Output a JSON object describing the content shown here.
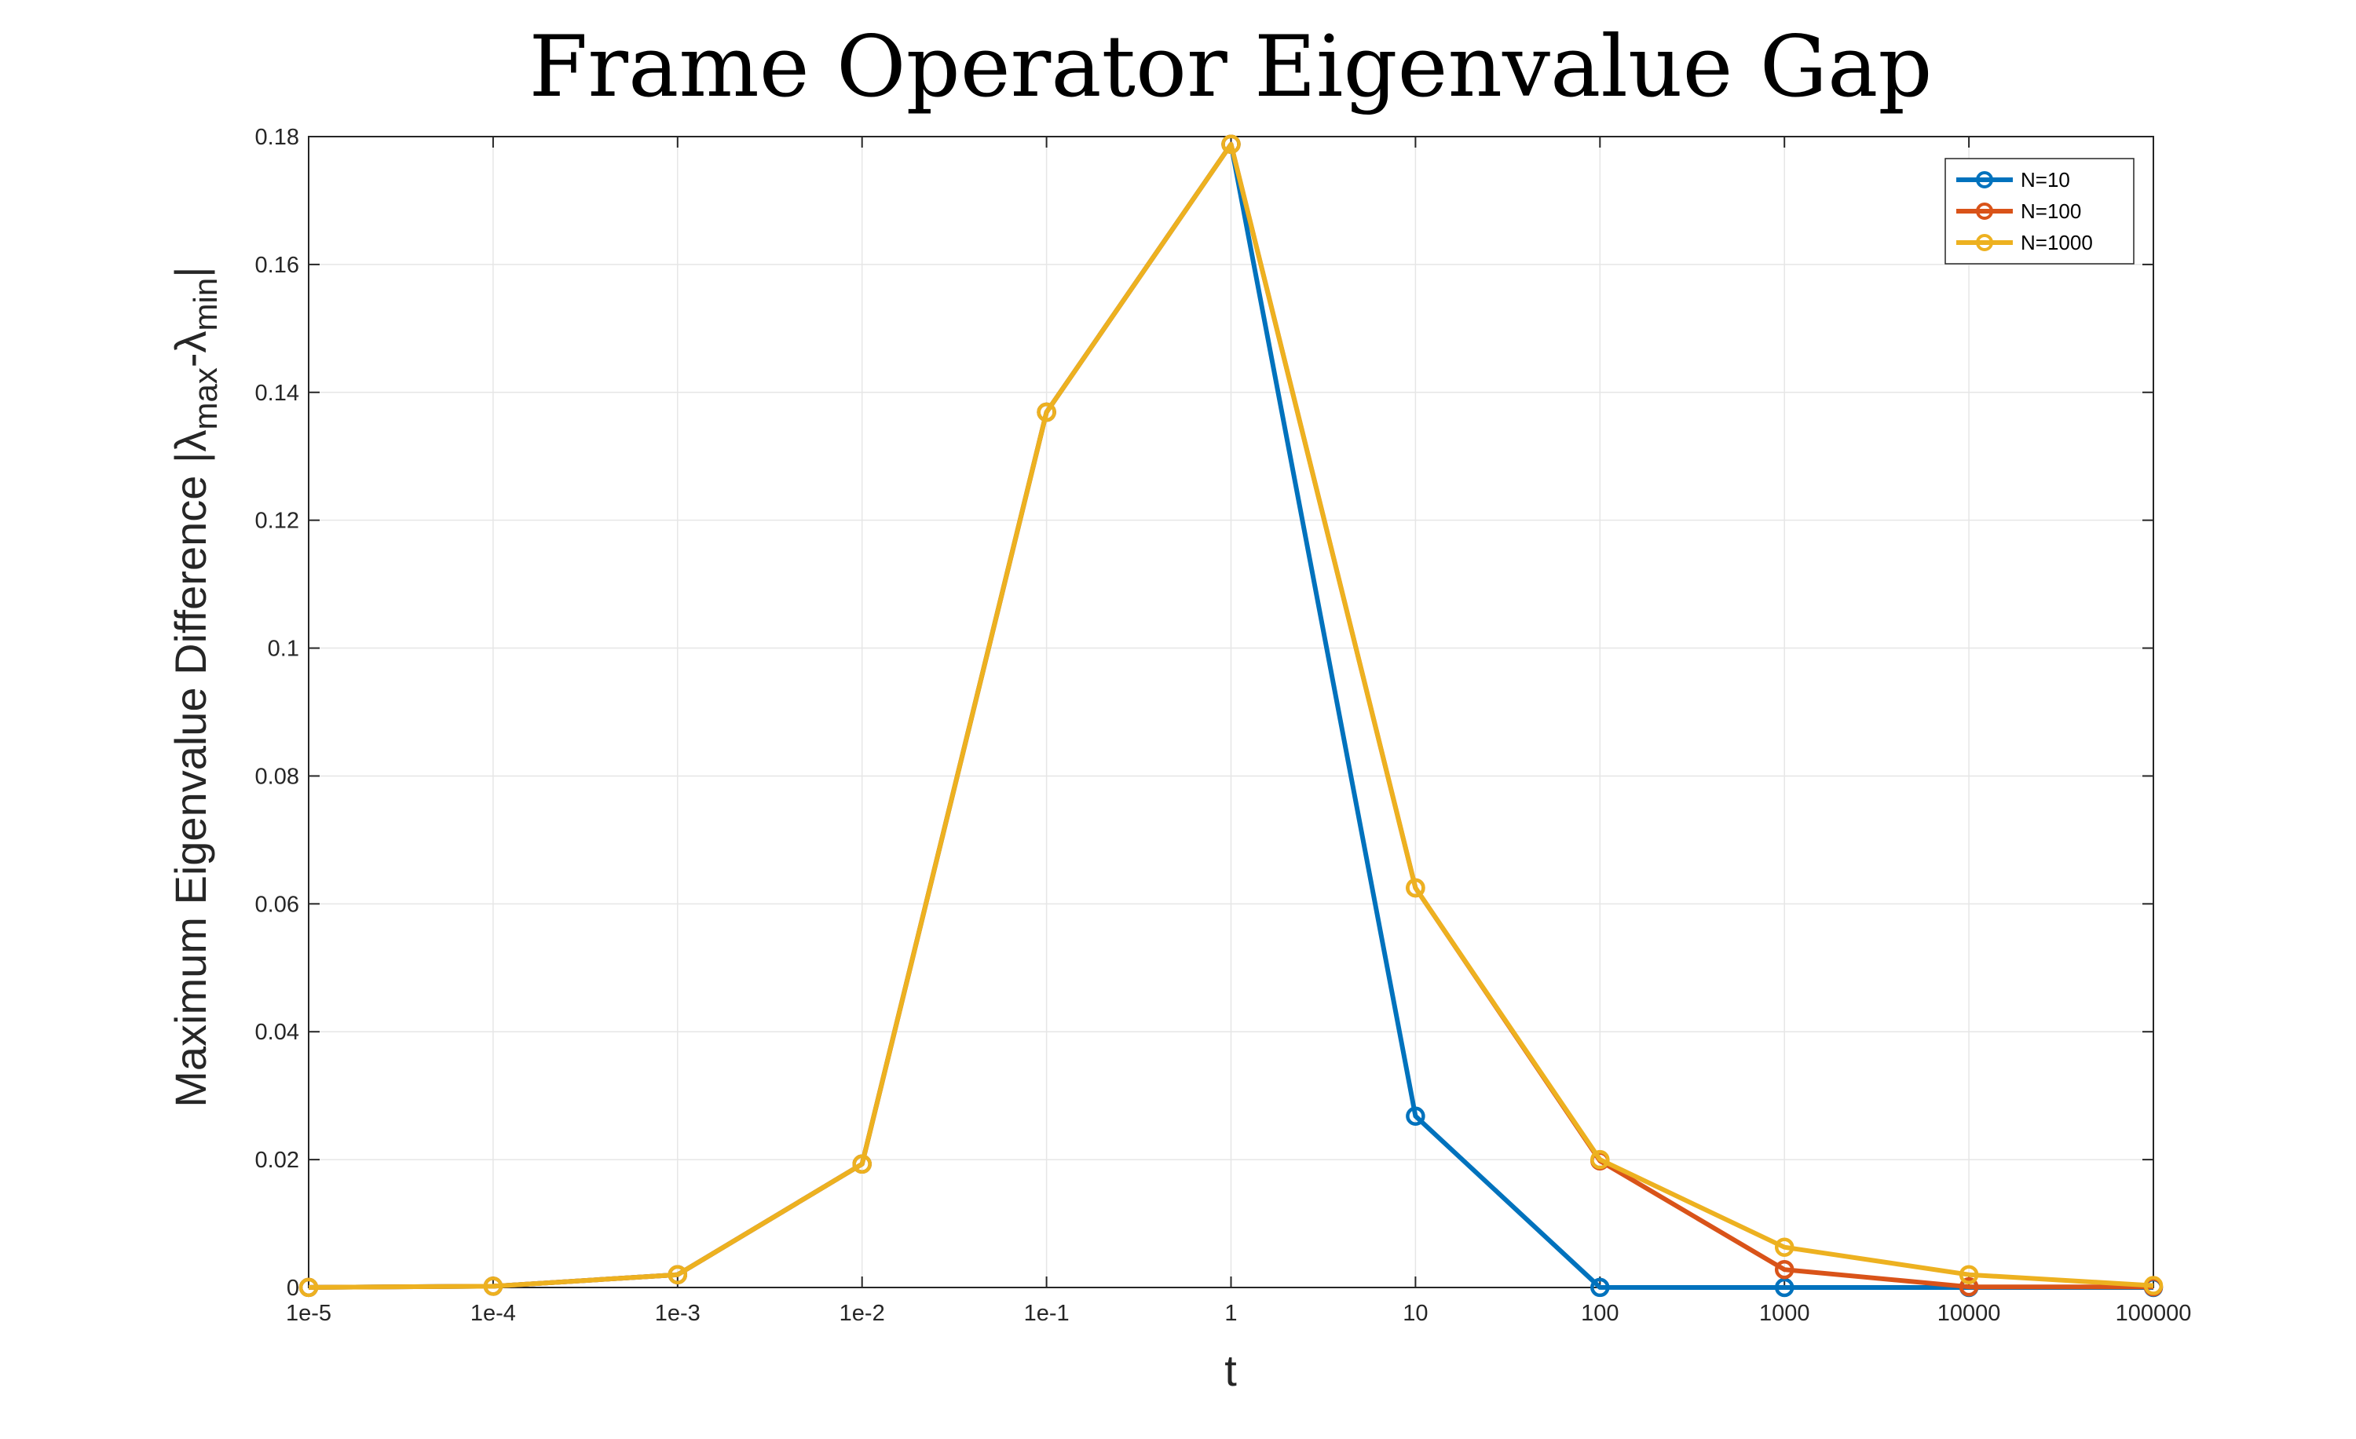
{
  "chart_data": {
    "type": "line",
    "title": "Frame Operator Eigenvalue Gap",
    "xlabel": "t",
    "ylabel": {
      "main": "Maximum Eigenvalue Difference |",
      "lambda": "λ",
      "max_sub": "max",
      "minus": "-",
      "min_sub": "min",
      "close": "|"
    },
    "x_scale": "log",
    "x": [
      1e-05,
      0.0001,
      0.001,
      0.01,
      0.1,
      1,
      10,
      100,
      1000,
      10000,
      100000
    ],
    "x_tick_labels": [
      "1e-5",
      "1e-4",
      "1e-3",
      "1e-2",
      "1e-1",
      "1",
      "10",
      "100",
      "1000",
      "10000",
      "100000"
    ],
    "ylim": [
      0,
      0.18
    ],
    "y_ticks": [
      0,
      0.02,
      0.04,
      0.06,
      0.08,
      0.1,
      0.12,
      0.14,
      0.16,
      0.18
    ],
    "y_tick_labels": [
      "0",
      "0.02",
      "0.04",
      "0.06",
      "0.08",
      "0.1",
      "0.12",
      "0.14",
      "0.16",
      "0.18"
    ],
    "grid": true,
    "legend_position": "top-right",
    "series": [
      {
        "name": "N=10",
        "color": "#0072BD",
        "values": [
          1e-05,
          0.0002,
          0.002,
          0.0193,
          0.1369,
          0.1788,
          0.0268,
          1e-05,
          0.0,
          0.0,
          0.0
        ]
      },
      {
        "name": "N=100",
        "color": "#D95319",
        "values": [
          1e-05,
          0.0002,
          0.002,
          0.0193,
          0.1369,
          0.1788,
          0.0625,
          0.0198,
          0.0028,
          0.0001,
          0.0001
        ]
      },
      {
        "name": "N=1000",
        "color": "#EDB120",
        "values": [
          1e-05,
          0.0002,
          0.002,
          0.0193,
          0.1369,
          0.1788,
          0.0625,
          0.02,
          0.0063,
          0.002,
          0.0003
        ]
      }
    ]
  }
}
